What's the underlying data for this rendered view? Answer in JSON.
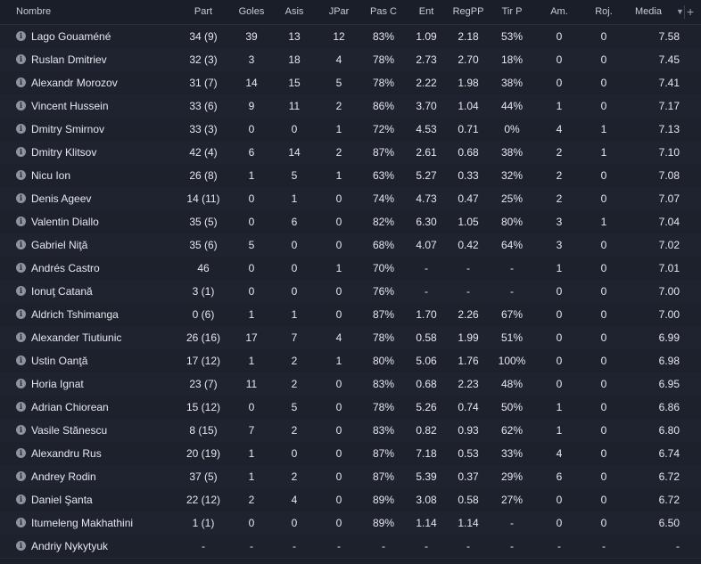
{
  "header": {
    "name": "Nombre",
    "part": "Part",
    "goles": "Goles",
    "asis": "Asis",
    "jpar": "JPar",
    "pasc": "Pas C",
    "ent": "Ent",
    "regpp": "RegPP",
    "tirp": "Tir P",
    "am": "Am.",
    "roj": "Roj.",
    "media": "Media",
    "sort_icon": "caret-down-icon",
    "add_icon": "plus-icon"
  },
  "rows": [
    {
      "name": "Lago Gouaméné",
      "part": "34 (9)",
      "goles": "39",
      "asis": "13",
      "jpar": "12",
      "pasc": "83%",
      "ent": "1.09",
      "regpp": "2.18",
      "tirp": "53%",
      "am": "0",
      "roj": "0",
      "media": "7.58"
    },
    {
      "name": "Ruslan Dmitriev",
      "part": "32 (3)",
      "goles": "3",
      "asis": "18",
      "jpar": "4",
      "pasc": "78%",
      "ent": "2.73",
      "regpp": "2.70",
      "tirp": "18%",
      "am": "0",
      "roj": "0",
      "media": "7.45"
    },
    {
      "name": "Alexandr Morozov",
      "part": "31 (7)",
      "goles": "14",
      "asis": "15",
      "jpar": "5",
      "pasc": "78%",
      "ent": "2.22",
      "regpp": "1.98",
      "tirp": "38%",
      "am": "0",
      "roj": "0",
      "media": "7.41"
    },
    {
      "name": "Vincent Hussein",
      "part": "33 (6)",
      "goles": "9",
      "asis": "11",
      "jpar": "2",
      "pasc": "86%",
      "ent": "3.70",
      "regpp": "1.04",
      "tirp": "44%",
      "am": "1",
      "roj": "0",
      "media": "7.17"
    },
    {
      "name": "Dmitry Smirnov",
      "part": "33 (3)",
      "goles": "0",
      "asis": "0",
      "jpar": "1",
      "pasc": "72%",
      "ent": "4.53",
      "regpp": "0.71",
      "tirp": "0%",
      "am": "4",
      "roj": "1",
      "media": "7.13"
    },
    {
      "name": "Dmitry Klitsov",
      "part": "42 (4)",
      "goles": "6",
      "asis": "14",
      "jpar": "2",
      "pasc": "87%",
      "ent": "2.61",
      "regpp": "0.68",
      "tirp": "38%",
      "am": "2",
      "roj": "1",
      "media": "7.10"
    },
    {
      "name": "Nicu Ion",
      "part": "26 (8)",
      "goles": "1",
      "asis": "5",
      "jpar": "1",
      "pasc": "63%",
      "ent": "5.27",
      "regpp": "0.33",
      "tirp": "32%",
      "am": "2",
      "roj": "0",
      "media": "7.08"
    },
    {
      "name": "Denis Ageev",
      "part": "14 (11)",
      "goles": "0",
      "asis": "1",
      "jpar": "0",
      "pasc": "74%",
      "ent": "4.73",
      "regpp": "0.47",
      "tirp": "25%",
      "am": "2",
      "roj": "0",
      "media": "7.07"
    },
    {
      "name": "Valentin Diallo",
      "part": "35 (5)",
      "goles": "0",
      "asis": "6",
      "jpar": "0",
      "pasc": "82%",
      "ent": "6.30",
      "regpp": "1.05",
      "tirp": "80%",
      "am": "3",
      "roj": "1",
      "media": "7.04"
    },
    {
      "name": "Gabriel Niţă",
      "part": "35 (6)",
      "goles": "5",
      "asis": "0",
      "jpar": "0",
      "pasc": "68%",
      "ent": "4.07",
      "regpp": "0.42",
      "tirp": "64%",
      "am": "3",
      "roj": "0",
      "media": "7.02"
    },
    {
      "name": "Andrés Castro",
      "part": "46",
      "goles": "0",
      "asis": "0",
      "jpar": "1",
      "pasc": "70%",
      "ent": "-",
      "regpp": "-",
      "tirp": "-",
      "am": "1",
      "roj": "0",
      "media": "7.01"
    },
    {
      "name": "Ionuţ Catană",
      "part": "3 (1)",
      "goles": "0",
      "asis": "0",
      "jpar": "0",
      "pasc": "76%",
      "ent": "-",
      "regpp": "-",
      "tirp": "-",
      "am": "0",
      "roj": "0",
      "media": "7.00"
    },
    {
      "name": "Aldrich Tshimanga",
      "part": "0 (6)",
      "goles": "1",
      "asis": "1",
      "jpar": "0",
      "pasc": "87%",
      "ent": "1.70",
      "regpp": "2.26",
      "tirp": "67%",
      "am": "0",
      "roj": "0",
      "media": "7.00"
    },
    {
      "name": "Alexander Tiutiunic",
      "part": "26 (16)",
      "goles": "17",
      "asis": "7",
      "jpar": "4",
      "pasc": "78%",
      "ent": "0.58",
      "regpp": "1.99",
      "tirp": "51%",
      "am": "0",
      "roj": "0",
      "media": "6.99"
    },
    {
      "name": "Ustin Oanţă",
      "part": "17 (12)",
      "goles": "1",
      "asis": "2",
      "jpar": "1",
      "pasc": "80%",
      "ent": "5.06",
      "regpp": "1.76",
      "tirp": "100%",
      "am": "0",
      "roj": "0",
      "media": "6.98"
    },
    {
      "name": "Horia Ignat",
      "part": "23 (7)",
      "goles": "11",
      "asis": "2",
      "jpar": "0",
      "pasc": "83%",
      "ent": "0.68",
      "regpp": "2.23",
      "tirp": "48%",
      "am": "0",
      "roj": "0",
      "media": "6.95"
    },
    {
      "name": "Adrian Chiorean",
      "part": "15 (12)",
      "goles": "0",
      "asis": "5",
      "jpar": "0",
      "pasc": "78%",
      "ent": "5.26",
      "regpp": "0.74",
      "tirp": "50%",
      "am": "1",
      "roj": "0",
      "media": "6.86"
    },
    {
      "name": "Vasile Stănescu",
      "part": "8 (15)",
      "goles": "7",
      "asis": "2",
      "jpar": "0",
      "pasc": "83%",
      "ent": "0.82",
      "regpp": "0.93",
      "tirp": "62%",
      "am": "1",
      "roj": "0",
      "media": "6.80"
    },
    {
      "name": "Alexandru Rus",
      "part": "20 (19)",
      "goles": "1",
      "asis": "0",
      "jpar": "0",
      "pasc": "87%",
      "ent": "7.18",
      "regpp": "0.53",
      "tirp": "33%",
      "am": "4",
      "roj": "0",
      "media": "6.74"
    },
    {
      "name": "Andrey Rodin",
      "part": "37 (5)",
      "goles": "1",
      "asis": "2",
      "jpar": "0",
      "pasc": "87%",
      "ent": "5.39",
      "regpp": "0.37",
      "tirp": "29%",
      "am": "6",
      "roj": "0",
      "media": "6.72"
    },
    {
      "name": "Daniel Şanta",
      "part": "22 (12)",
      "goles": "2",
      "asis": "4",
      "jpar": "0",
      "pasc": "89%",
      "ent": "3.08",
      "regpp": "0.58",
      "tirp": "27%",
      "am": "0",
      "roj": "0",
      "media": "6.72"
    },
    {
      "name": "Itumeleng Makhathini",
      "part": "1 (1)",
      "goles": "0",
      "asis": "0",
      "jpar": "0",
      "pasc": "89%",
      "ent": "1.14",
      "regpp": "1.14",
      "tirp": "-",
      "am": "0",
      "roj": "0",
      "media": "6.50"
    },
    {
      "name": "Andriy Nykytyuk",
      "part": "-",
      "goles": "-",
      "asis": "-",
      "jpar": "-",
      "pasc": "-",
      "ent": "-",
      "regpp": "-",
      "tirp": "-",
      "am": "-",
      "roj": "-",
      "media": "-"
    }
  ]
}
